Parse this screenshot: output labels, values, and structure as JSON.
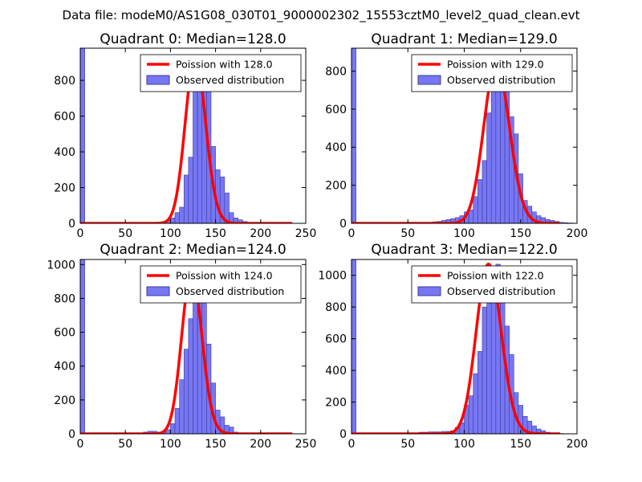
{
  "figure_title": "Data file: modeM0/AS1G08_030T01_9000002302_15553cztM0_level2_quad_clean.evt",
  "colors": {
    "poisson": "#ff0000",
    "bars_fill": "#7777f4",
    "bars_edge": "#3b3b9e"
  },
  "chart_data": [
    {
      "type": "bar",
      "title": "Quadrant 0: Median=128.0",
      "median": 128.0,
      "xlim": [
        0,
        250
      ],
      "ylim": [
        0,
        980
      ],
      "xticks": [
        0,
        50,
        100,
        150,
        200,
        250
      ],
      "yticks": [
        0,
        200,
        400,
        600,
        800
      ],
      "bin_width": 5,
      "bins": [
        [
          0,
          980
        ],
        [
          75,
          2
        ],
        [
          80,
          3
        ],
        [
          85,
          4
        ],
        [
          90,
          10
        ],
        [
          95,
          15
        ],
        [
          100,
          30
        ],
        [
          105,
          60
        ],
        [
          110,
          90
        ],
        [
          115,
          270
        ],
        [
          120,
          370
        ],
        [
          125,
          810
        ],
        [
          130,
          930
        ],
        [
          135,
          880
        ],
        [
          140,
          750
        ],
        [
          145,
          430
        ],
        [
          150,
          300
        ],
        [
          155,
          260
        ],
        [
          160,
          170
        ],
        [
          165,
          60
        ],
        [
          170,
          30
        ],
        [
          175,
          20
        ],
        [
          180,
          10
        ],
        [
          185,
          5
        ],
        [
          190,
          3
        ],
        [
          195,
          2
        ],
        [
          200,
          1
        ]
      ],
      "legend": {
        "line": "Poission with 128.0",
        "bars": "Observed distribution",
        "position": "upper right"
      }
    },
    {
      "type": "bar",
      "title": "Quadrant 1: Median=129.0",
      "median": 129.0,
      "xlim": [
        0,
        200
      ],
      "ylim": [
        0,
        920
      ],
      "xticks": [
        0,
        50,
        100,
        150,
        200
      ],
      "yticks": [
        0,
        200,
        400,
        600,
        800
      ],
      "bin_width": 4,
      "bins": [
        [
          0,
          920
        ],
        [
          68,
          5
        ],
        [
          72,
          8
        ],
        [
          76,
          10
        ],
        [
          80,
          15
        ],
        [
          84,
          20
        ],
        [
          88,
          25
        ],
        [
          92,
          30
        ],
        [
          96,
          40
        ],
        [
          100,
          60
        ],
        [
          104,
          70
        ],
        [
          108,
          140
        ],
        [
          112,
          230
        ],
        [
          116,
          330
        ],
        [
          120,
          580
        ],
        [
          124,
          720
        ],
        [
          128,
          840
        ],
        [
          132,
          830
        ],
        [
          136,
          700
        ],
        [
          140,
          560
        ],
        [
          144,
          470
        ],
        [
          148,
          260
        ],
        [
          152,
          120
        ],
        [
          156,
          90
        ],
        [
          160,
          60
        ],
        [
          164,
          40
        ],
        [
          168,
          30
        ],
        [
          172,
          20
        ],
        [
          176,
          15
        ],
        [
          180,
          10
        ],
        [
          184,
          5
        ],
        [
          188,
          3
        ],
        [
          192,
          2
        ],
        [
          196,
          1
        ]
      ],
      "legend": {
        "line": "Poission with 129.0",
        "bars": "Observed distribution",
        "position": "upper right"
      }
    },
    {
      "type": "bar",
      "title": "Quadrant 2: Median=124.0",
      "median": 124.0,
      "xlim": [
        0,
        250
      ],
      "ylim": [
        0,
        1030
      ],
      "xticks": [
        0,
        50,
        100,
        150,
        200,
        250
      ],
      "yticks": [
        0,
        200,
        400,
        600,
        800,
        1000
      ],
      "bin_width": 5,
      "bins": [
        [
          0,
          1030
        ],
        [
          70,
          10
        ],
        [
          75,
          15
        ],
        [
          80,
          15
        ],
        [
          85,
          10
        ],
        [
          90,
          10
        ],
        [
          95,
          25
        ],
        [
          100,
          60
        ],
        [
          105,
          150
        ],
        [
          110,
          320
        ],
        [
          115,
          500
        ],
        [
          120,
          680
        ],
        [
          125,
          960
        ],
        [
          130,
          940
        ],
        [
          135,
          790
        ],
        [
          140,
          530
        ],
        [
          145,
          300
        ],
        [
          150,
          140
        ],
        [
          155,
          100
        ],
        [
          160,
          50
        ],
        [
          165,
          40
        ],
        [
          170,
          10
        ],
        [
          175,
          5
        ],
        [
          180,
          3
        ],
        [
          185,
          2
        ],
        [
          190,
          2
        ],
        [
          195,
          1
        ],
        [
          200,
          1
        ]
      ],
      "legend": {
        "line": "Poission with 124.0",
        "bars": "Observed distribution",
        "position": "upper right"
      }
    },
    {
      "type": "bar",
      "title": "Quadrant 3: Median=122.0",
      "median": 122.0,
      "xlim": [
        0,
        200
      ],
      "ylim": [
        0,
        1100
      ],
      "xticks": [
        0,
        50,
        100,
        150,
        200
      ],
      "yticks": [
        0,
        200,
        400,
        600,
        800,
        1000
      ],
      "bin_width": 4,
      "bins": [
        [
          0,
          1100
        ],
        [
          60,
          10
        ],
        [
          64,
          10
        ],
        [
          68,
          12
        ],
        [
          72,
          12
        ],
        [
          76,
          12
        ],
        [
          80,
          15
        ],
        [
          84,
          15
        ],
        [
          88,
          20
        ],
        [
          92,
          40
        ],
        [
          96,
          70
        ],
        [
          100,
          180
        ],
        [
          104,
          240
        ],
        [
          108,
          380
        ],
        [
          112,
          520
        ],
        [
          116,
          800
        ],
        [
          120,
          860
        ],
        [
          124,
          1040
        ],
        [
          128,
          1070
        ],
        [
          132,
          920
        ],
        [
          136,
          680
        ],
        [
          140,
          500
        ],
        [
          144,
          260
        ],
        [
          148,
          180
        ],
        [
          152,
          110
        ],
        [
          156,
          80
        ],
        [
          160,
          50
        ],
        [
          164,
          30
        ],
        [
          168,
          20
        ],
        [
          172,
          10
        ],
        [
          176,
          5
        ],
        [
          180,
          3
        ],
        [
          184,
          2
        ]
      ],
      "legend": {
        "line": "Poission with 122.0",
        "bars": "Observed distribution",
        "position": "upper right"
      }
    }
  ]
}
